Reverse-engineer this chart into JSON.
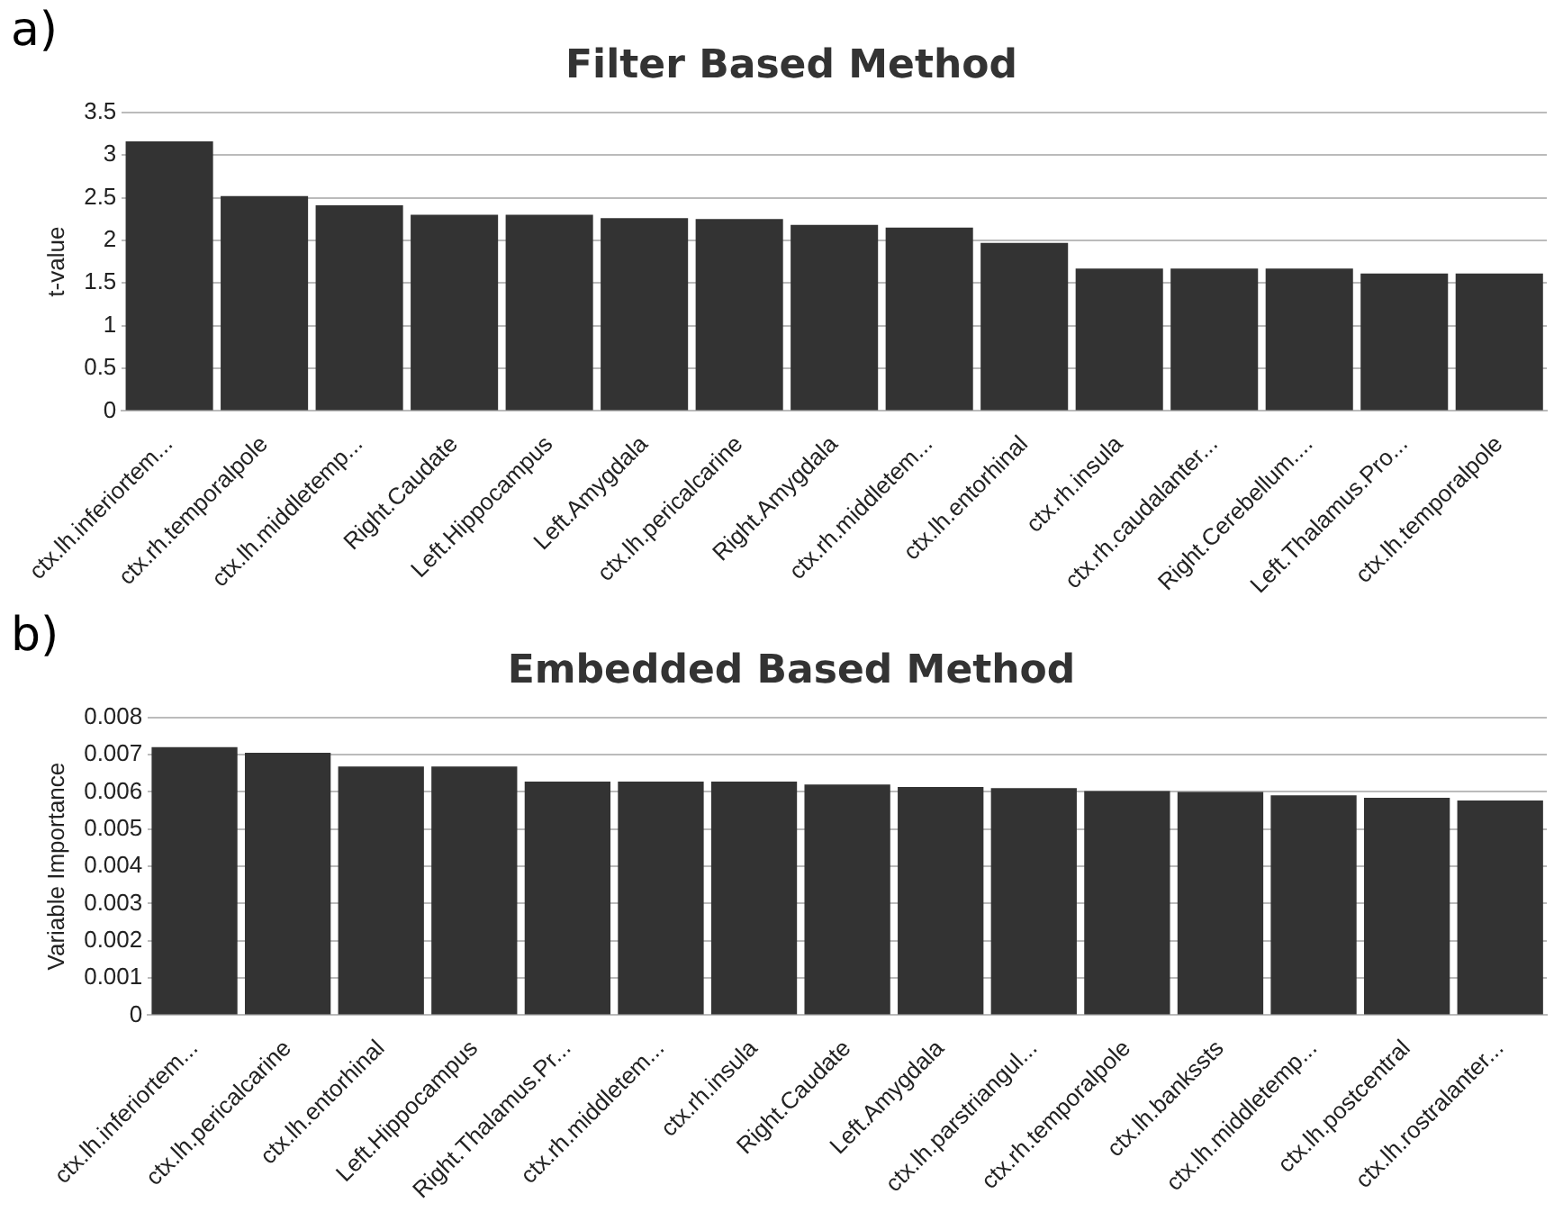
{
  "chart_data": [
    {
      "type": "bar",
      "title": "Filter Based Method",
      "ylabel": "t-value",
      "annotations": [
        "a)"
      ],
      "categories": [
        "ctx.lh.inferiortem...",
        "ctx.rh.temporalpole",
        "ctx.lh.middletemp...",
        "Right.Caudate",
        "Left.Hippocampus",
        "Left.Amygdala",
        "ctx.lh.pericalcarine",
        "Right.Amygdala",
        "ctx.rh.middletem...",
        "ctx.lh.entorhinal",
        "ctx.rh.insula",
        "ctx.rh.caudalanter...",
        "Right.Cerebellum....",
        "Left.Thalamus.Pro...",
        "ctx.lh.temporalpole"
      ],
      "values": [
        3.16,
        2.52,
        2.41,
        2.3,
        2.3,
        2.26,
        2.25,
        2.18,
        2.15,
        1.97,
        1.67,
        1.67,
        1.67,
        1.61,
        1.61
      ],
      "color": "#333333",
      "ylim": [
        0,
        3.5
      ],
      "yticks": [
        0,
        0.5,
        1,
        1.5,
        2,
        2.5,
        3,
        3.5
      ],
      "grid": "y",
      "legend": false
    },
    {
      "type": "bar",
      "title": "Embedded Based Method",
      "ylabel": "Variable Importance",
      "annotations": [
        "b)"
      ],
      "categories": [
        "ctx.lh.inferiortem...",
        "ctx.lh.pericalcarine",
        "ctx.lh.entorhinal",
        "Left.Hippocampus",
        "Right.Thalamus.Pr...",
        "ctx.rh.middletem...",
        "ctx.rh.insula",
        "Right.Caudate",
        "Left.Amygdala",
        "ctx.lh.parstriangul...",
        "ctx.rh.temporalpole",
        "ctx.lh.bankssts",
        "ctx.lh.middletemp...",
        "ctx.lh.postcentral",
        "ctx.lh.rostralanter..."
      ],
      "values": [
        0.0072,
        0.00705,
        0.00668,
        0.00668,
        0.00628,
        0.00628,
        0.00628,
        0.0062,
        0.00613,
        0.0061,
        0.00602,
        0.006,
        0.00591,
        0.00584,
        0.00577
      ],
      "color": "#333333",
      "ylim": [
        0,
        0.008
      ],
      "yticks": [
        0,
        0.001,
        0.002,
        0.003,
        0.004,
        0.005,
        0.006,
        0.007,
        0.008
      ],
      "grid": "y",
      "legend": false
    }
  ]
}
